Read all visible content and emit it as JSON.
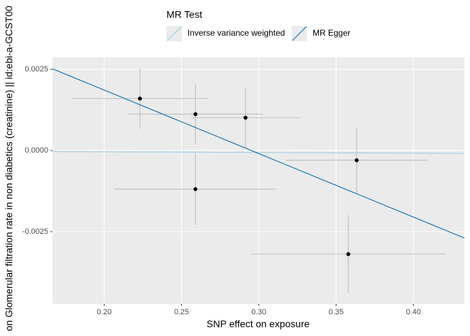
{
  "chart_data": {
    "type": "scatter",
    "x_label": "SNP effect on exposure",
    "y_label": "on Glomerular filtration rate in non diabetics (creatinine) || id:ebi-a-GCST00",
    "legend_title": "MR Test",
    "x": [
      0.2231,
      0.259,
      0.2914,
      0.3633,
      0.259,
      0.3579
    ],
    "values": [
      0.0016,
      0.00112,
      0.00101,
      -0.0003,
      -0.00119,
      -0.00319
    ],
    "x_err": [
      0.0443,
      0.0437,
      0.0353,
      0.046,
      0.0523,
      0.063
    ],
    "y_err": [
      0.00093,
      0.00092,
      0.00093,
      0.00101,
      0.0011,
      0.0012
    ],
    "point_color": "#000000",
    "error_color": "#bdbdbd",
    "series": [
      {
        "name": "Inverse variance weighted",
        "color": "#a6cee3",
        "slope": -0.0002,
        "intercept": 0
      },
      {
        "name": "MR Egger",
        "color": "#1f78b4",
        "slope": -0.01955,
        "intercept": 0.00577
      }
    ],
    "xlim": [
      0.1665,
      0.433
    ],
    "ylim": [
      -0.00472,
      0.002866
    ],
    "xticks": [
      {
        "value": 0.2,
        "label": "0.20"
      },
      0.25,
      {
        "value": 0.3,
        "label": "0.30"
      },
      0.35,
      {
        "value": 0.4,
        "label": "0.40"
      }
    ],
    "yticks": [
      {
        "value": -0.0025,
        "label": "-0.0025"
      },
      {
        "value": 0,
        "label": "0.0000"
      },
      0.0025
    ],
    "grid": true
  }
}
